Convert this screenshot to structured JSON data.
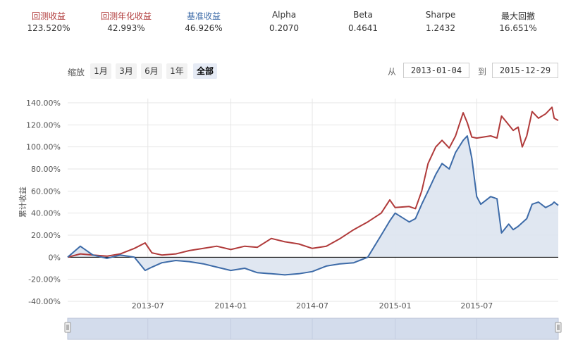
{
  "metrics": [
    {
      "label": "回测收益",
      "value": "123.520%",
      "color": "#b03a3a"
    },
    {
      "label": "回测年化收益",
      "value": "42.993%",
      "color": "#b03a3a"
    },
    {
      "label": "基准收益",
      "value": "46.926%",
      "color": "#3d6ba8"
    },
    {
      "label": "Alpha",
      "value": "0.2070",
      "color": "#333333"
    },
    {
      "label": "Beta",
      "value": "0.4641",
      "color": "#333333"
    },
    {
      "label": "Sharpe",
      "value": "1.2432",
      "color": "#333333"
    },
    {
      "label": "最大回撤",
      "value": "16.651%",
      "color": "#333333"
    }
  ],
  "zoom": {
    "label": "缩放",
    "buttons": [
      "1月",
      "3月",
      "6月",
      "1年",
      "全部"
    ],
    "active": "全部"
  },
  "range": {
    "from_label": "从",
    "from": "2013-01-04",
    "to_label": "到",
    "to": "2015-12-29"
  },
  "chart_data": {
    "type": "area",
    "ylabel": "累计收益",
    "y_ticks": [
      "140.00%",
      "120.00%",
      "100.00%",
      "80.00%",
      "60.00%",
      "40.00%",
      "20.00%",
      "0%",
      "-20.00%",
      "-40.00%"
    ],
    "ylim": [
      -40,
      140
    ],
    "x_ticks": [
      "2013-07",
      "2014-01",
      "2014-07",
      "2015-01",
      "2015-07"
    ],
    "xlim": [
      "2013-01-04",
      "2015-12-29"
    ],
    "series": [
      {
        "name": "回测收益",
        "color": "#b03a3a",
        "points": [
          [
            "2013-01-04",
            0
          ],
          [
            "2013-02-01",
            3
          ],
          [
            "2013-03-01",
            2
          ],
          [
            "2013-04-01",
            1
          ],
          [
            "2013-05-01",
            3
          ],
          [
            "2013-06-01",
            8
          ],
          [
            "2013-06-25",
            13
          ],
          [
            "2013-07-10",
            4
          ],
          [
            "2013-08-01",
            2
          ],
          [
            "2013-09-01",
            3
          ],
          [
            "2013-10-01",
            6
          ],
          [
            "2013-11-01",
            8
          ],
          [
            "2013-12-01",
            10
          ],
          [
            "2014-01-01",
            7
          ],
          [
            "2014-02-01",
            10
          ],
          [
            "2014-03-01",
            9
          ],
          [
            "2014-04-01",
            17
          ],
          [
            "2014-05-01",
            14
          ],
          [
            "2014-06-01",
            12
          ],
          [
            "2014-07-01",
            8
          ],
          [
            "2014-08-01",
            10
          ],
          [
            "2014-09-01",
            17
          ],
          [
            "2014-10-01",
            25
          ],
          [
            "2014-11-01",
            32
          ],
          [
            "2014-12-01",
            40
          ],
          [
            "2014-12-20",
            52
          ],
          [
            "2015-01-01",
            45
          ],
          [
            "2015-02-01",
            46
          ],
          [
            "2015-02-15",
            44
          ],
          [
            "2015-03-01",
            60
          ],
          [
            "2015-03-15",
            85
          ],
          [
            "2015-04-01",
            100
          ],
          [
            "2015-04-15",
            106
          ],
          [
            "2015-05-01",
            99
          ],
          [
            "2015-05-15",
            110
          ],
          [
            "2015-06-01",
            131
          ],
          [
            "2015-06-10",
            122
          ],
          [
            "2015-06-20",
            109
          ],
          [
            "2015-07-01",
            108
          ],
          [
            "2015-08-01",
            110
          ],
          [
            "2015-08-15",
            108
          ],
          [
            "2015-08-25",
            128
          ],
          [
            "2015-09-10",
            120
          ],
          [
            "2015-09-20",
            115
          ],
          [
            "2015-10-01",
            118
          ],
          [
            "2015-10-10",
            100
          ],
          [
            "2015-10-20",
            110
          ],
          [
            "2015-11-01",
            132
          ],
          [
            "2015-11-15",
            126
          ],
          [
            "2015-12-01",
            130
          ],
          [
            "2015-12-15",
            136
          ],
          [
            "2015-12-20",
            126
          ],
          [
            "2015-12-29",
            124
          ]
        ]
      },
      {
        "name": "基准收益",
        "color": "#3d6ba8",
        "points": [
          [
            "2013-01-04",
            0
          ],
          [
            "2013-02-01",
            10
          ],
          [
            "2013-03-01",
            2
          ],
          [
            "2013-04-01",
            -1
          ],
          [
            "2013-05-01",
            2
          ],
          [
            "2013-06-01",
            0
          ],
          [
            "2013-06-25",
            -12
          ],
          [
            "2013-07-10",
            -9
          ],
          [
            "2013-08-01",
            -5
          ],
          [
            "2013-09-01",
            -3
          ],
          [
            "2013-10-01",
            -4
          ],
          [
            "2013-11-01",
            -6
          ],
          [
            "2013-12-01",
            -9
          ],
          [
            "2014-01-01",
            -12
          ],
          [
            "2014-02-01",
            -10
          ],
          [
            "2014-03-01",
            -14
          ],
          [
            "2014-04-01",
            -15
          ],
          [
            "2014-05-01",
            -16
          ],
          [
            "2014-06-01",
            -15
          ],
          [
            "2014-07-01",
            -13
          ],
          [
            "2014-08-01",
            -8
          ],
          [
            "2014-09-01",
            -6
          ],
          [
            "2014-10-01",
            -5
          ],
          [
            "2014-11-01",
            0
          ],
          [
            "2014-12-01",
            20
          ],
          [
            "2014-12-20",
            33
          ],
          [
            "2015-01-01",
            40
          ],
          [
            "2015-02-01",
            32
          ],
          [
            "2015-02-15",
            35
          ],
          [
            "2015-03-01",
            48
          ],
          [
            "2015-03-15",
            60
          ],
          [
            "2015-04-01",
            75
          ],
          [
            "2015-04-15",
            85
          ],
          [
            "2015-05-01",
            80
          ],
          [
            "2015-05-15",
            95
          ],
          [
            "2015-06-01",
            106
          ],
          [
            "2015-06-10",
            110
          ],
          [
            "2015-06-20",
            90
          ],
          [
            "2015-07-01",
            55
          ],
          [
            "2015-07-10",
            48
          ],
          [
            "2015-08-01",
            55
          ],
          [
            "2015-08-15",
            53
          ],
          [
            "2015-08-25",
            22
          ],
          [
            "2015-09-10",
            30
          ],
          [
            "2015-09-20",
            25
          ],
          [
            "2015-10-01",
            28
          ],
          [
            "2015-10-20",
            35
          ],
          [
            "2015-11-01",
            48
          ],
          [
            "2015-11-15",
            50
          ],
          [
            "2015-12-01",
            45
          ],
          [
            "2015-12-15",
            48
          ],
          [
            "2015-12-20",
            50
          ],
          [
            "2015-12-29",
            47
          ]
        ]
      }
    ],
    "grid": true
  }
}
